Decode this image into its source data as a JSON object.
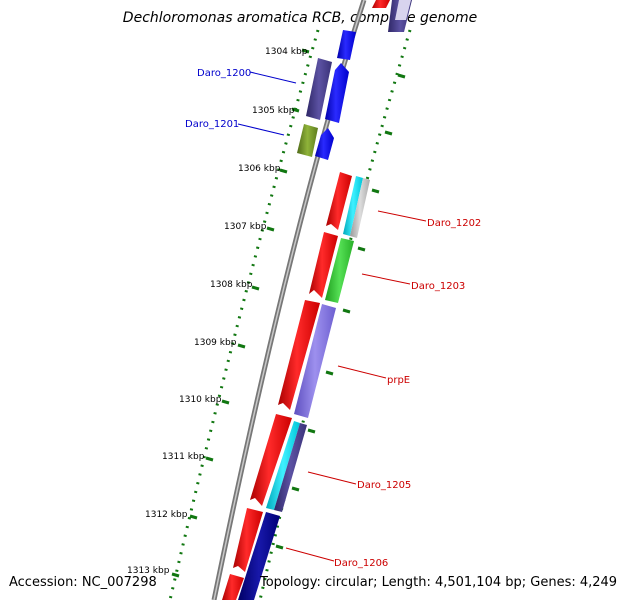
{
  "title": "Dechloromonas aromatica RCB, complete genome",
  "accession": "Accession: NC_007298",
  "topology": "Topology: circular; Length: 4,501,104 bp; Genes: 4,249",
  "ruler_labels": [
    "1304 kbp",
    "1305 kbp",
    "1306 kbp",
    "1307 kbp",
    "1308 kbp",
    "1309 kbp",
    "1310 kbp",
    "1311 kbp",
    "1312 kbp",
    "1313 kbp"
  ],
  "gene_labels": {
    "left": [
      "Daro_1200",
      "Daro_1201"
    ],
    "right": [
      "Daro_1202",
      "Daro_1203",
      "prpE",
      "Daro_1205",
      "Daro_1206"
    ]
  },
  "colors": {
    "left_label": "#0000cc",
    "right_label": "#cc0000",
    "dots": "#117711",
    "backbone": "#888888",
    "red_gene": "#ff0000",
    "blue_gene": "#0000ff",
    "purple_gene": "#4a3f8a",
    "olive_gene": "#6b8e23",
    "cyan_gene": "#00ddee",
    "green_gene": "#33cc33",
    "lavender_gene": "#8070dd",
    "navy_gene": "#000088"
  }
}
